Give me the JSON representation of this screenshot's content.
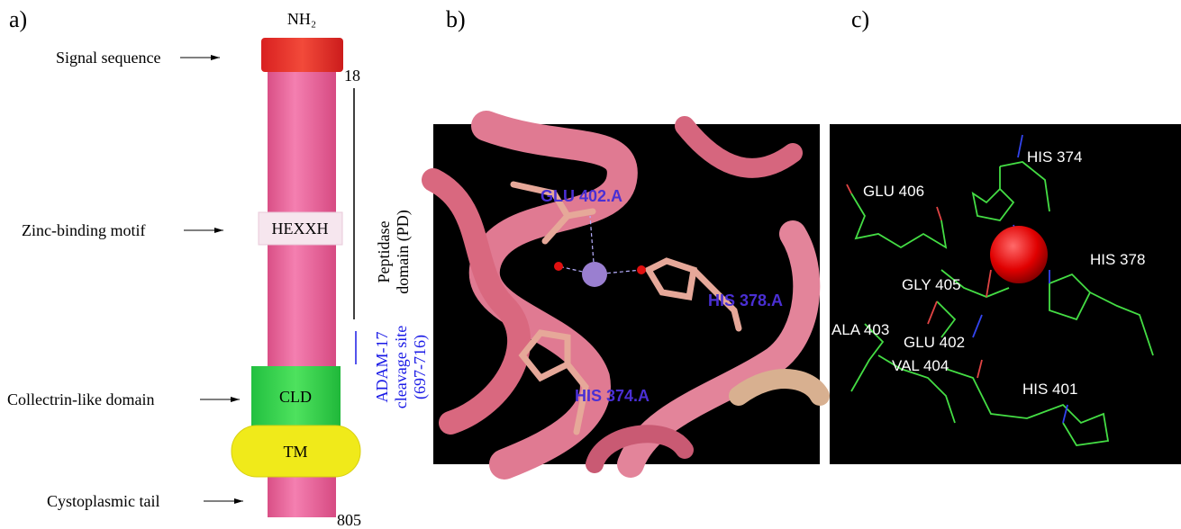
{
  "panel_a": {
    "label": "a)",
    "terminus_n": "NH₂",
    "signal": "Signal sequence",
    "zinc": "Zinc-binding motif",
    "collectrin": "Collectrin-like domain",
    "tail": "Cystoplasmic tail",
    "start_residue": "18",
    "end_residue": "805",
    "motif_box": "HEXXH",
    "cld_box": "CLD",
    "tm_box": "TM",
    "peptidase": [
      "Peptidase",
      "domain (PD)"
    ],
    "adam": [
      "ADAM-17",
      "cleavage site",
      "(697-716)"
    ]
  },
  "panel_b": {
    "label": "b)",
    "residues": [
      "GLU 402.A",
      "HIS 378.A",
      "HIS 374.A"
    ]
  },
  "panel_c": {
    "label": "c)",
    "residues": [
      "HIS 374",
      "GLU 406",
      "HIS 378",
      "GLY 405",
      "ALA 403",
      "GLU 402",
      "VAL 404",
      "HIS 401"
    ]
  }
}
